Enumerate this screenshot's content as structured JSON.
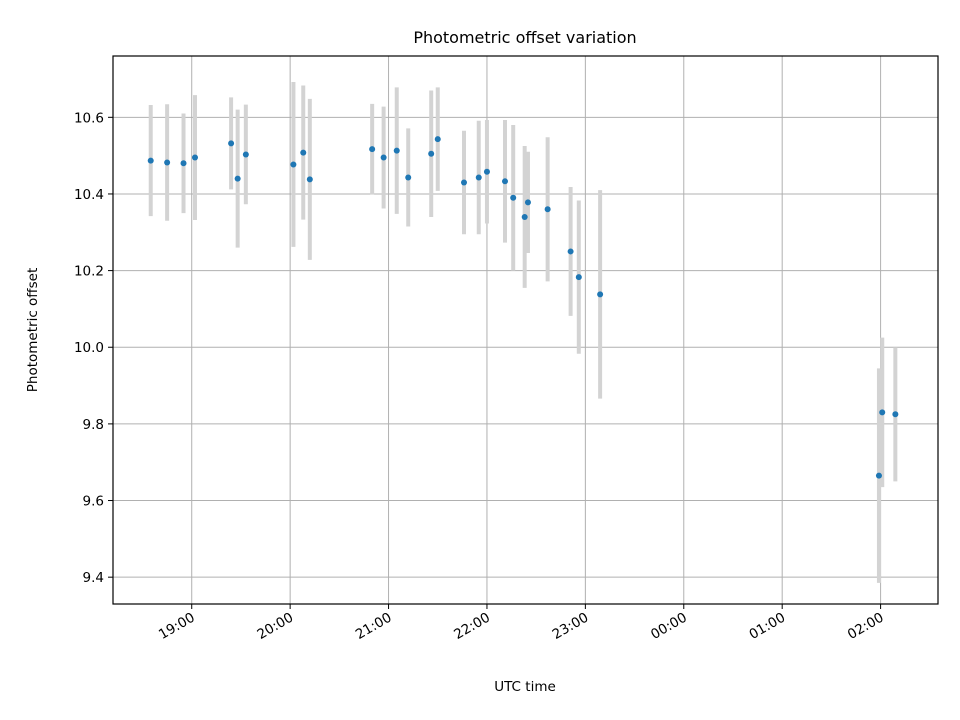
{
  "chart_data": {
    "type": "scatter",
    "title": "Photometric offset variation",
    "xlabel": "UTC time",
    "ylabel": "Photometric offset",
    "grid": true,
    "colors": {
      "marker": "#1f77b4",
      "errorbar": "#d3d3d3",
      "grid": "#b0b0b0"
    },
    "xlim": [
      "18:12",
      "02:35"
    ],
    "ylim": [
      9.33,
      10.76
    ],
    "xticks": [
      "19:00",
      "20:00",
      "21:00",
      "22:00",
      "23:00",
      "00:00",
      "01:00",
      "02:00"
    ],
    "yticks": [
      "9.4",
      "9.6",
      "9.8",
      "10.0",
      "10.2",
      "10.4",
      "10.6"
    ],
    "points": [
      {
        "x": "18:35",
        "y": 10.487,
        "err": 0.145
      },
      {
        "x": "18:45",
        "y": 10.482,
        "err": 0.152
      },
      {
        "x": "18:55",
        "y": 10.48,
        "err": 0.13
      },
      {
        "x": "19:02",
        "y": 10.495,
        "err": 0.163
      },
      {
        "x": "19:24",
        "y": 10.532,
        "err": 0.12
      },
      {
        "x": "19:28",
        "y": 10.44,
        "err": 0.18
      },
      {
        "x": "19:33",
        "y": 10.503,
        "err": 0.13
      },
      {
        "x": "20:02",
        "y": 10.477,
        "err": 0.215
      },
      {
        "x": "20:08",
        "y": 10.508,
        "err": 0.175
      },
      {
        "x": "20:12",
        "y": 10.438,
        "err": 0.21
      },
      {
        "x": "20:50",
        "y": 10.517,
        "err": 0.118
      },
      {
        "x": "20:57",
        "y": 10.495,
        "err": 0.133
      },
      {
        "x": "21:05",
        "y": 10.513,
        "err": 0.165
      },
      {
        "x": "21:12",
        "y": 10.443,
        "err": 0.128
      },
      {
        "x": "21:26",
        "y": 10.505,
        "err": 0.165
      },
      {
        "x": "21:30",
        "y": 10.543,
        "err": 0.135
      },
      {
        "x": "21:46",
        "y": 10.43,
        "err": 0.135
      },
      {
        "x": "21:55",
        "y": 10.443,
        "err": 0.148
      },
      {
        "x": "22:00",
        "y": 10.458,
        "err": 0.135
      },
      {
        "x": "22:11",
        "y": 10.433,
        "err": 0.16
      },
      {
        "x": "22:16",
        "y": 10.39,
        "err": 0.19
      },
      {
        "x": "22:23",
        "y": 10.34,
        "err": 0.185
      },
      {
        "x": "22:25",
        "y": 10.378,
        "err": 0.132
      },
      {
        "x": "22:37",
        "y": 10.36,
        "err": 0.188
      },
      {
        "x": "22:51",
        "y": 10.25,
        "err": 0.168
      },
      {
        "x": "22:56",
        "y": 10.183,
        "err": 0.2
      },
      {
        "x": "23:09",
        "y": 10.138,
        "err": 0.272
      },
      {
        "x": "01:59",
        "y": 9.665,
        "err": 0.28
      },
      {
        "x": "02:01",
        "y": 9.83,
        "err": 0.195
      },
      {
        "x": "02:09",
        "y": 9.825,
        "err": 0.175
      }
    ]
  }
}
